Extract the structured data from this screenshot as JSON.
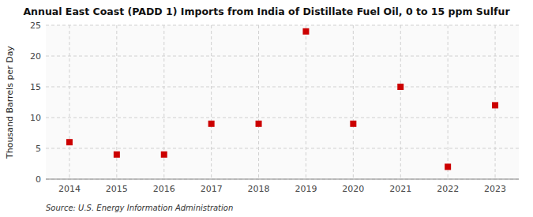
{
  "chart_data": {
    "type": "scatter",
    "title": "Annual East Coast (PADD 1) Imports from India of Distillate Fuel Oil, 0 to 15 ppm Sulfur",
    "ylabel": "Thousand Barrels per Day",
    "source": "Source: U.S. Energy Information Administration",
    "x": [
      2014,
      2015,
      2016,
      2017,
      2018,
      2019,
      2020,
      2021,
      2022,
      2023
    ],
    "values": [
      6,
      4,
      4,
      9,
      9,
      24,
      9,
      15,
      2,
      12
    ],
    "xlim": [
      2013.5,
      2023.5
    ],
    "ylim": [
      0,
      25
    ],
    "xticks": [
      2014,
      2015,
      2016,
      2017,
      2018,
      2019,
      2020,
      2021,
      2022,
      2023
    ],
    "yticks": [
      0,
      5,
      10,
      15,
      20,
      25
    ],
    "color": "#cc0000",
    "marker": "square",
    "grid": true
  }
}
